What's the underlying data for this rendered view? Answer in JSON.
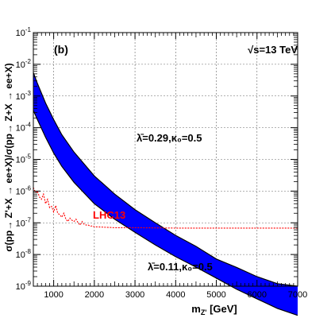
{
  "chart_data": {
    "type": "area",
    "panel_label": "(b)",
    "energy_label": "√s=13 TeV",
    "xlabel": "m_Z' [GeV]",
    "ylabel": "σ(pp→ Z'+X → ee+X)/σ(pp→ Z+X → ee+X)",
    "xlim": [
      500,
      7000
    ],
    "ylim_log10": [
      -9,
      -1
    ],
    "log_y": true,
    "grid": true,
    "x_ticks": [
      1000,
      2000,
      3000,
      4000,
      5000,
      6000,
      7000
    ],
    "x_tick_labels": [
      "1000",
      "2000",
      "3000",
      "4000",
      "5000",
      "6000",
      "7000"
    ],
    "y_ticks_exponent": [
      -9,
      -8,
      -7,
      -6,
      -5,
      -4,
      -3,
      -2,
      -1
    ],
    "band": {
      "color": "#0000ff",
      "upper_label": "λ̄=0.29,κ₀=0.5",
      "lower_label": "λ̄=0.11,κ₀=0.5",
      "upper": {
        "x": [
          500,
          600,
          800,
          1000,
          1200,
          1500,
          2000,
          2500,
          3000,
          3500,
          4000,
          4500,
          5000,
          5500,
          6000,
          6500,
          7000
        ],
        "y": [
          0.0055,
          0.0025,
          0.0006,
          0.00018,
          6e-05,
          1.7e-05,
          3e-06,
          8e-07,
          2.6e-07,
          1e-07,
          4e-08,
          1.8e-08,
          7.2e-09,
          3.9e-09,
          2e-09,
          1.2e-09,
          1e-09
        ]
      },
      "lower": {
        "x": [
          500,
          600,
          800,
          1000,
          1200,
          1500,
          2000,
          2500,
          3000,
          3500,
          4000,
          4500,
          5000,
          5500,
          6000,
          6500,
          7000
        ],
        "y": [
          0.00035,
          0.00018,
          5e-05,
          1.6e-05,
          6e-06,
          1.9e-06,
          4e-07,
          1.3e-07,
          5e-08,
          2e-08,
          8.5e-09,
          4e-09,
          1.8e-09,
          8e-10,
          4e-10,
          2e-10,
          1.2e-10
        ]
      }
    },
    "limit_curve": {
      "name": "LHC13",
      "color": "#ff0000",
      "x": [
        500,
        550,
        600,
        650,
        700,
        750,
        800,
        850,
        900,
        950,
        1000,
        1050,
        1100,
        1150,
        1200,
        1250,
        1300,
        1350,
        1400,
        1450,
        1500,
        1550,
        1600,
        1650,
        1700,
        1750,
        1800,
        1850,
        1900,
        1950,
        2000,
        2500,
        3000,
        4000,
        5000,
        6000,
        7000
      ],
      "y": [
        1.3e-06,
        9e-07,
        1e-06,
        6.5e-07,
        5.5e-07,
        8e-07,
        4e-07,
        5.5e-07,
        3e-07,
        3.3e-07,
        2.2e-07,
        3.5e-07,
        2e-07,
        1.8e-07,
        1.5e-07,
        2e-07,
        1.3e-07,
        1.1e-07,
        1.4e-07,
        1.2e-07,
        1.1e-07,
        1.3e-07,
        1e-07,
        8.5e-08,
        1.1e-07,
        9e-08,
        8.5e-08,
        8.5e-08,
        7.8e-08,
        8e-08,
        7.5e-08,
        7e-08,
        7e-08,
        6.8e-08,
        6.8e-08,
        6.8e-08,
        6.8e-08
      ]
    }
  }
}
